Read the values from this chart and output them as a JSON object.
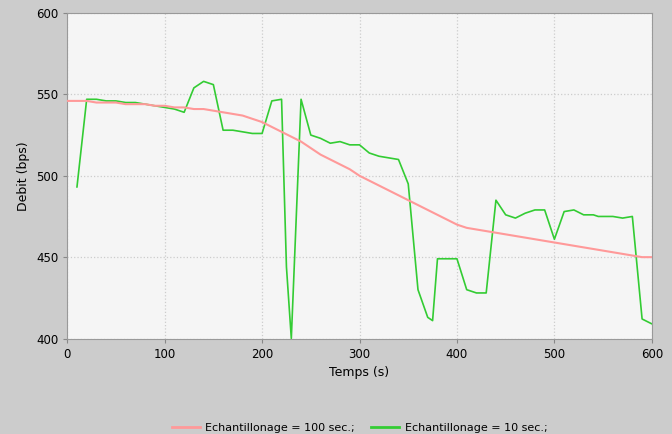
{
  "xlabel": "Temps (s)",
  "ylabel": "Debit (bps)",
  "xlim": [
    0,
    600
  ],
  "ylim": [
    400,
    600
  ],
  "yticks": [
    400,
    450,
    500,
    550,
    600
  ],
  "xticks": [
    0,
    100,
    200,
    300,
    400,
    500,
    600
  ],
  "legend_labels": [
    "Echantillonage = 100 sec.;",
    "Echantillonage = 10 sec.;"
  ],
  "legend_colors": [
    "#ff9999",
    "#33cc33"
  ],
  "fig_bg": "#cccccc",
  "plot_bg": "#f5f5f5",
  "red_x": [
    0,
    10,
    20,
    30,
    40,
    50,
    60,
    70,
    80,
    90,
    100,
    110,
    120,
    130,
    140,
    150,
    160,
    170,
    180,
    190,
    200,
    210,
    220,
    230,
    240,
    250,
    260,
    270,
    280,
    290,
    300,
    310,
    320,
    330,
    340,
    350,
    360,
    370,
    380,
    390,
    400,
    410,
    420,
    430,
    440,
    450,
    460,
    470,
    480,
    490,
    500,
    510,
    520,
    530,
    540,
    550,
    560,
    570,
    580,
    590,
    600
  ],
  "red_y": [
    546,
    546,
    546,
    545,
    545,
    545,
    544,
    544,
    544,
    543,
    543,
    542,
    542,
    541,
    541,
    540,
    539,
    538,
    537,
    535,
    533,
    530,
    527,
    524,
    521,
    517,
    513,
    510,
    507,
    504,
    500,
    497,
    494,
    491,
    488,
    485,
    482,
    479,
    476,
    473,
    470,
    468,
    467,
    466,
    465,
    464,
    463,
    462,
    461,
    460,
    459,
    458,
    457,
    456,
    455,
    454,
    453,
    452,
    451,
    450,
    450
  ],
  "green_x": [
    10,
    20,
    30,
    40,
    50,
    60,
    70,
    80,
    90,
    100,
    110,
    120,
    130,
    140,
    150,
    160,
    170,
    180,
    190,
    200,
    210,
    220,
    225,
    230,
    240,
    250,
    260,
    270,
    280,
    290,
    300,
    310,
    320,
    330,
    340,
    350,
    360,
    370,
    375,
    380,
    390,
    400,
    410,
    420,
    430,
    440,
    450,
    460,
    470,
    480,
    490,
    500,
    510,
    520,
    530,
    540,
    545,
    550,
    560,
    570,
    580,
    590,
    600
  ],
  "green_y": [
    493,
    547,
    547,
    546,
    546,
    545,
    545,
    544,
    543,
    542,
    541,
    539,
    554,
    558,
    556,
    528,
    528,
    527,
    526,
    526,
    546,
    547,
    444,
    400,
    547,
    525,
    523,
    520,
    521,
    519,
    519,
    514,
    512,
    511,
    510,
    495,
    430,
    413,
    411,
    449,
    449,
    449,
    430,
    428,
    428,
    485,
    476,
    474,
    477,
    479,
    479,
    461,
    478,
    479,
    476,
    476,
    475,
    475,
    475,
    474,
    475,
    412,
    409
  ]
}
